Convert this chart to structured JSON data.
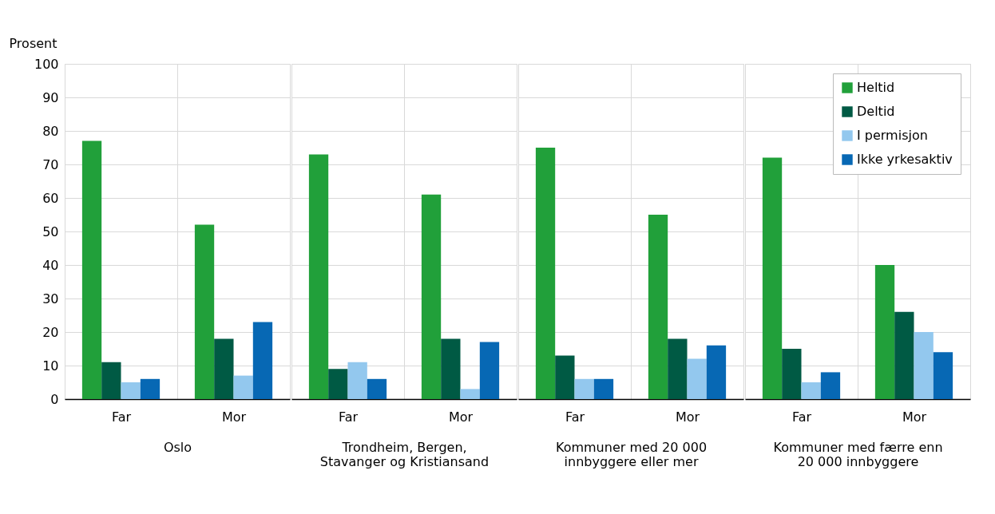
{
  "chart_data": [
    {
      "type": "bar",
      "xlabel": "Oslo",
      "ylabel": "Prosent",
      "categories": [
        "Far",
        "Mor"
      ],
      "ylim": [
        0,
        100
      ],
      "yticks": [
        0,
        10,
        20,
        30,
        40,
        50,
        60,
        70,
        80,
        90,
        100
      ],
      "grid": true,
      "legend": false,
      "series": [
        {
          "color": "#21a03a",
          "values": [
            77,
            52
          ]
        },
        {
          "color": "#005a44",
          "values": [
            11,
            18
          ]
        },
        {
          "color": "#93c8ee",
          "values": [
            5,
            7
          ]
        },
        {
          "color": "#0768b4",
          "values": [
            6,
            23
          ]
        }
      ]
    },
    {
      "type": "bar",
      "xlabel": "Trondheim, Bergen,\nStavanger og Kristiansand",
      "categories": [
        "Far",
        "Mor"
      ],
      "ylim": [
        0,
        100
      ],
      "yticks": [
        0,
        10,
        20,
        30,
        40,
        50,
        60,
        70,
        80,
        90,
        100
      ],
      "grid": true,
      "legend": false,
      "tick_labels": "x",
      "series": [
        {
          "color": "#21a03a",
          "values": [
            73,
            61
          ]
        },
        {
          "color": "#005a44",
          "values": [
            9,
            18
          ]
        },
        {
          "color": "#93c8ee",
          "values": [
            11,
            3
          ]
        },
        {
          "color": "#0768b4",
          "values": [
            6,
            17
          ]
        }
      ]
    },
    {
      "type": "bar",
      "xlabel": "Kommuner med 20 000\ninnbyggere eller mer",
      "categories": [
        "Far",
        "Mor"
      ],
      "ylim": [
        0,
        100
      ],
      "yticks": [
        0,
        10,
        20,
        30,
        40,
        50,
        60,
        70,
        80,
        90,
        100
      ],
      "grid": true,
      "legend": false,
      "tick_labels": "x",
      "series": [
        {
          "color": "#21a03a",
          "values": [
            75,
            55
          ]
        },
        {
          "color": "#005a44",
          "values": [
            13,
            18
          ]
        },
        {
          "color": "#93c8ee",
          "values": [
            6,
            12
          ]
        },
        {
          "color": "#0768b4",
          "values": [
            6,
            16
          ]
        }
      ]
    },
    {
      "type": "bar",
      "xlabel": "Kommuner med færre enn\n20 000 innbyggere",
      "categories": [
        "Far",
        "Mor"
      ],
      "ylim": [
        0,
        100
      ],
      "yticks": [
        0,
        10,
        20,
        30,
        40,
        50,
        60,
        70,
        80,
        90,
        100
      ],
      "grid": true,
      "legend": "top right",
      "tick_labels": "x",
      "series": [
        {
          "name": "Heltid",
          "color": "#21a03a",
          "values": [
            72,
            40
          ]
        },
        {
          "name": "Deltid",
          "color": "#005a44",
          "values": [
            15,
            26
          ]
        },
        {
          "name": "I permisjon",
          "color": "#93c8ee",
          "values": [
            5,
            20
          ]
        },
        {
          "name": "Ikke yrkesaktiv",
          "color": "#0768b4",
          "values": [
            8,
            14
          ]
        }
      ]
    }
  ]
}
